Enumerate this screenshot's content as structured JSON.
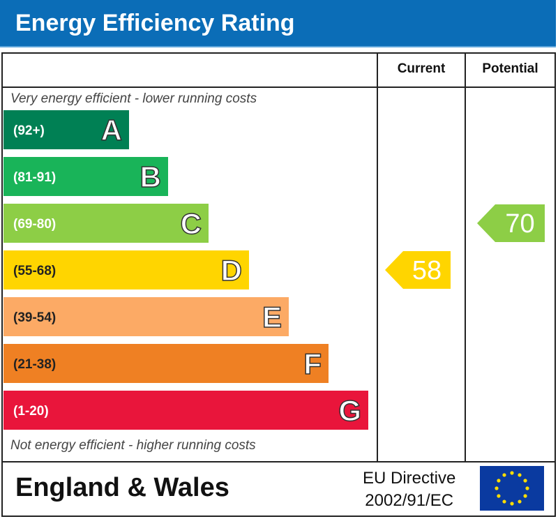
{
  "title": "Energy Efficiency Rating",
  "columns": {
    "current": "Current",
    "potential": "Potential"
  },
  "notes": {
    "top": "Very energy efficient - lower running costs",
    "bottom": "Not energy efficient - higher running costs"
  },
  "footer": {
    "region": "England & Wales",
    "directive_line1": "EU Directive",
    "directive_line2": "2002/91/EC",
    "flag_icon": "eu-flag-icon"
  },
  "colors": {
    "title_bar": "#0b6db7"
  },
  "chart_data": {
    "type": "bar",
    "categories": [
      "A",
      "B",
      "C",
      "D",
      "E",
      "F",
      "G"
    ],
    "ranges": [
      "(92+)",
      "(81-91)",
      "(69-80)",
      "(55-68)",
      "(39-54)",
      "(21-38)",
      "(1-20)"
    ],
    "colors": [
      "#008054",
      "#19b459",
      "#8dce46",
      "#ffd500",
      "#fcaa65",
      "#ef8023",
      "#e9153b"
    ],
    "current": {
      "value": 58,
      "band": "D",
      "color": "#ffd500"
    },
    "potential": {
      "value": 70,
      "band": "C",
      "color": "#8dce46"
    }
  }
}
